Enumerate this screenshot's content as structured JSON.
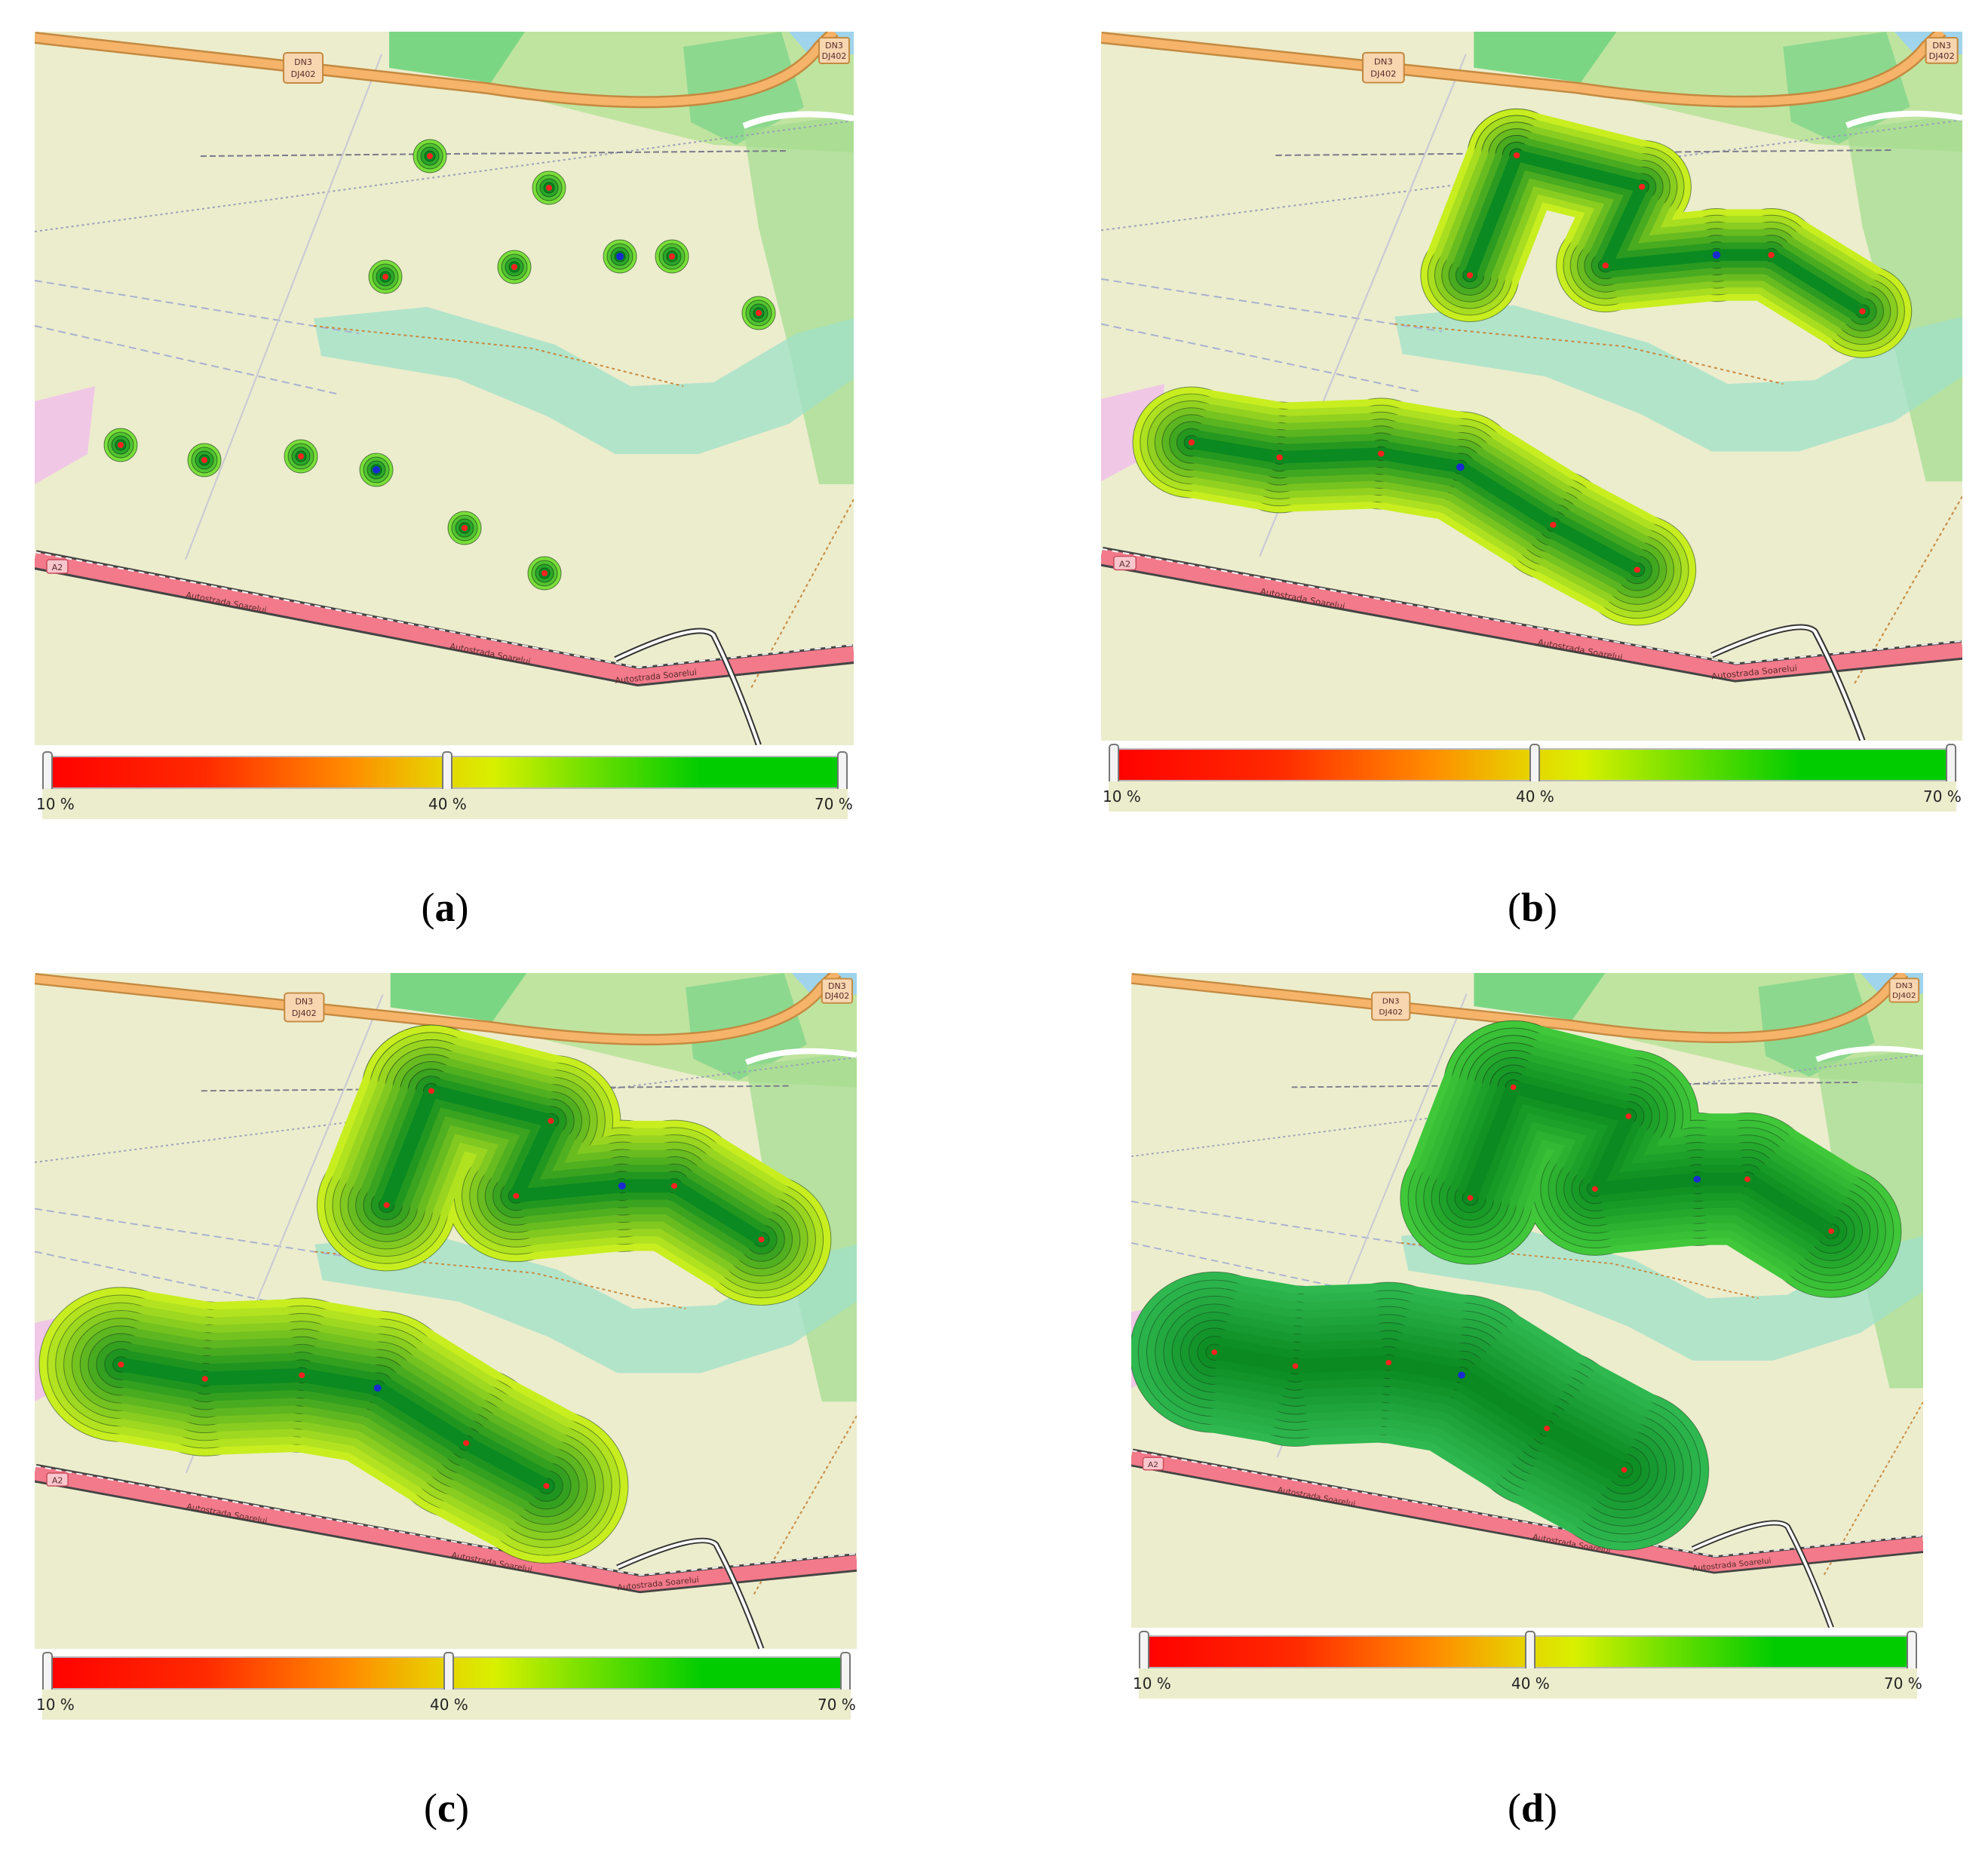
{
  "legend": {
    "tick_labels": [
      "10 %",
      "40 %",
      "70 %"
    ],
    "gradient_colors": [
      "#ff0000",
      "#ff2a00",
      "#ff8c00",
      "#e8d000",
      "#d8f000",
      "#6fe000",
      "#00cc00"
    ]
  },
  "road_labels": {
    "primary_ref_top": "DN3",
    "primary_ref_bottom": "DJ402",
    "motorway_ref": "A2",
    "motorway_name": "Autostrada Soarelui"
  },
  "panels": [
    {
      "id": "a",
      "caption_prefix": "(",
      "letter": "a",
      "caption_suffix": ")",
      "level": "small"
    },
    {
      "id": "b",
      "caption_prefix": "(",
      "letter": "b",
      "caption_suffix": ")",
      "level": "medium"
    },
    {
      "id": "c",
      "caption_prefix": "(",
      "letter": "c",
      "caption_suffix": ")",
      "level": "large"
    },
    {
      "id": "d",
      "caption_prefix": "(",
      "letter": "d",
      "caption_suffix": ")",
      "level": "dense"
    }
  ],
  "colors": {
    "map_background": "#ecedcd",
    "motorway": "#f27a8a",
    "primary_road": "#f6b36a",
    "wood": "#5fcf72",
    "water": "#9fd4ec",
    "wetland": "#9fe0c8",
    "node_red": "#ff2020",
    "node_blue": "#1a2ad0"
  },
  "icons": {
    "red_point": "red-node-marker-icon",
    "blue_point": "blue-gateway-marker-icon"
  }
}
